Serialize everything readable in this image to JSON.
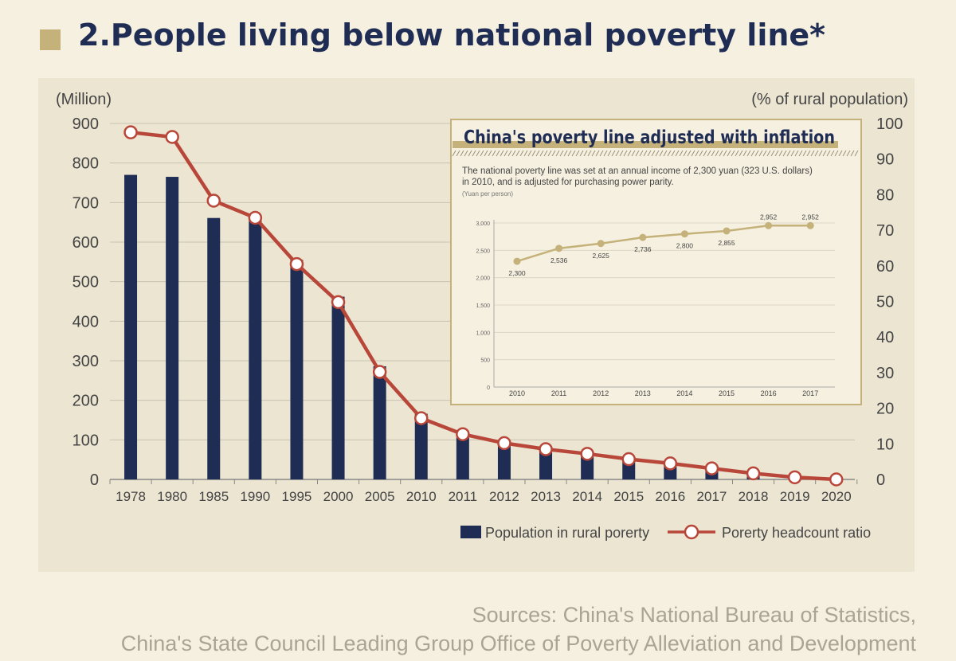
{
  "header": {
    "title": "2.People living below national poverty line*"
  },
  "sources": {
    "line1": "Sources: China's National Bureau of Statistics,",
    "line2": "China's State Council Leading Group Office of Poverty Alleviation and Development"
  },
  "colors": {
    "bar": "#1f2d55",
    "line": "#b8473a",
    "inset_line": "#c4b27a",
    "accent": "#c4b27a",
    "title": "#1f2d55"
  },
  "chart_data": [
    {
      "type": "bar+line",
      "left_axis_label": "(Million)",
      "right_axis_label": "(% of rural population)",
      "ylim_left": [
        0,
        900
      ],
      "yticks_left": [
        0,
        100,
        200,
        300,
        400,
        500,
        600,
        700,
        800,
        900
      ],
      "ylim_right": [
        0,
        100
      ],
      "yticks_right": [
        0,
        10,
        20,
        30,
        40,
        50,
        60,
        70,
        80,
        90,
        100
      ],
      "categories": [
        "1978",
        "1980",
        "1985",
        "1990",
        "1995",
        "2000",
        "2005",
        "2010",
        "2011",
        "2012",
        "2013",
        "2014",
        "2015",
        "2016",
        "2017",
        "2018",
        "2019",
        "2020"
      ],
      "series": [
        {
          "name": "Population in rural porerty",
          "type": "bar",
          "axis": "left",
          "values": [
            770,
            765,
            661,
            658,
            555,
            462,
            286,
            166,
            122,
            99,
            83,
            70,
            56,
            43,
            30,
            17,
            6,
            0
          ]
        },
        {
          "name": "Porerty headcount ratio",
          "type": "line",
          "axis": "right",
          "values": [
            97.5,
            96.2,
            78.3,
            73.5,
            60.5,
            49.8,
            30.2,
            17.2,
            12.7,
            10.2,
            8.5,
            7.2,
            5.7,
            4.5,
            3.1,
            1.7,
            0.6,
            0
          ]
        }
      ],
      "grid": true,
      "legend_position": "bottom-right"
    },
    {
      "type": "line",
      "title": "China's poverty line adjusted with inflation",
      "note": "The national poverty line was set at an annual income of 2,300 yuan (323 U.S. dollars) in 2010, and is adjusted for purchasing power parity.",
      "ylabel": "(Yuan per person)",
      "ylim": [
        0,
        3000
      ],
      "yticks": [
        0,
        500,
        1000,
        1500,
        2000,
        2500,
        3000
      ],
      "ytick_labels": [
        "0",
        "500",
        "1,000",
        "1,500",
        "2,000",
        "2,500",
        "3,000"
      ],
      "categories": [
        "2010",
        "2011",
        "2012",
        "2013",
        "2014",
        "2015",
        "2016",
        "2017"
      ],
      "values": [
        2300,
        2536,
        2625,
        2736,
        2800,
        2855,
        2952,
        2952
      ],
      "data_labels": [
        "2,300",
        "2,536",
        "2,625",
        "2,736",
        "2,800",
        "2,855",
        "2,952",
        "2,952"
      ],
      "grid": true
    }
  ]
}
